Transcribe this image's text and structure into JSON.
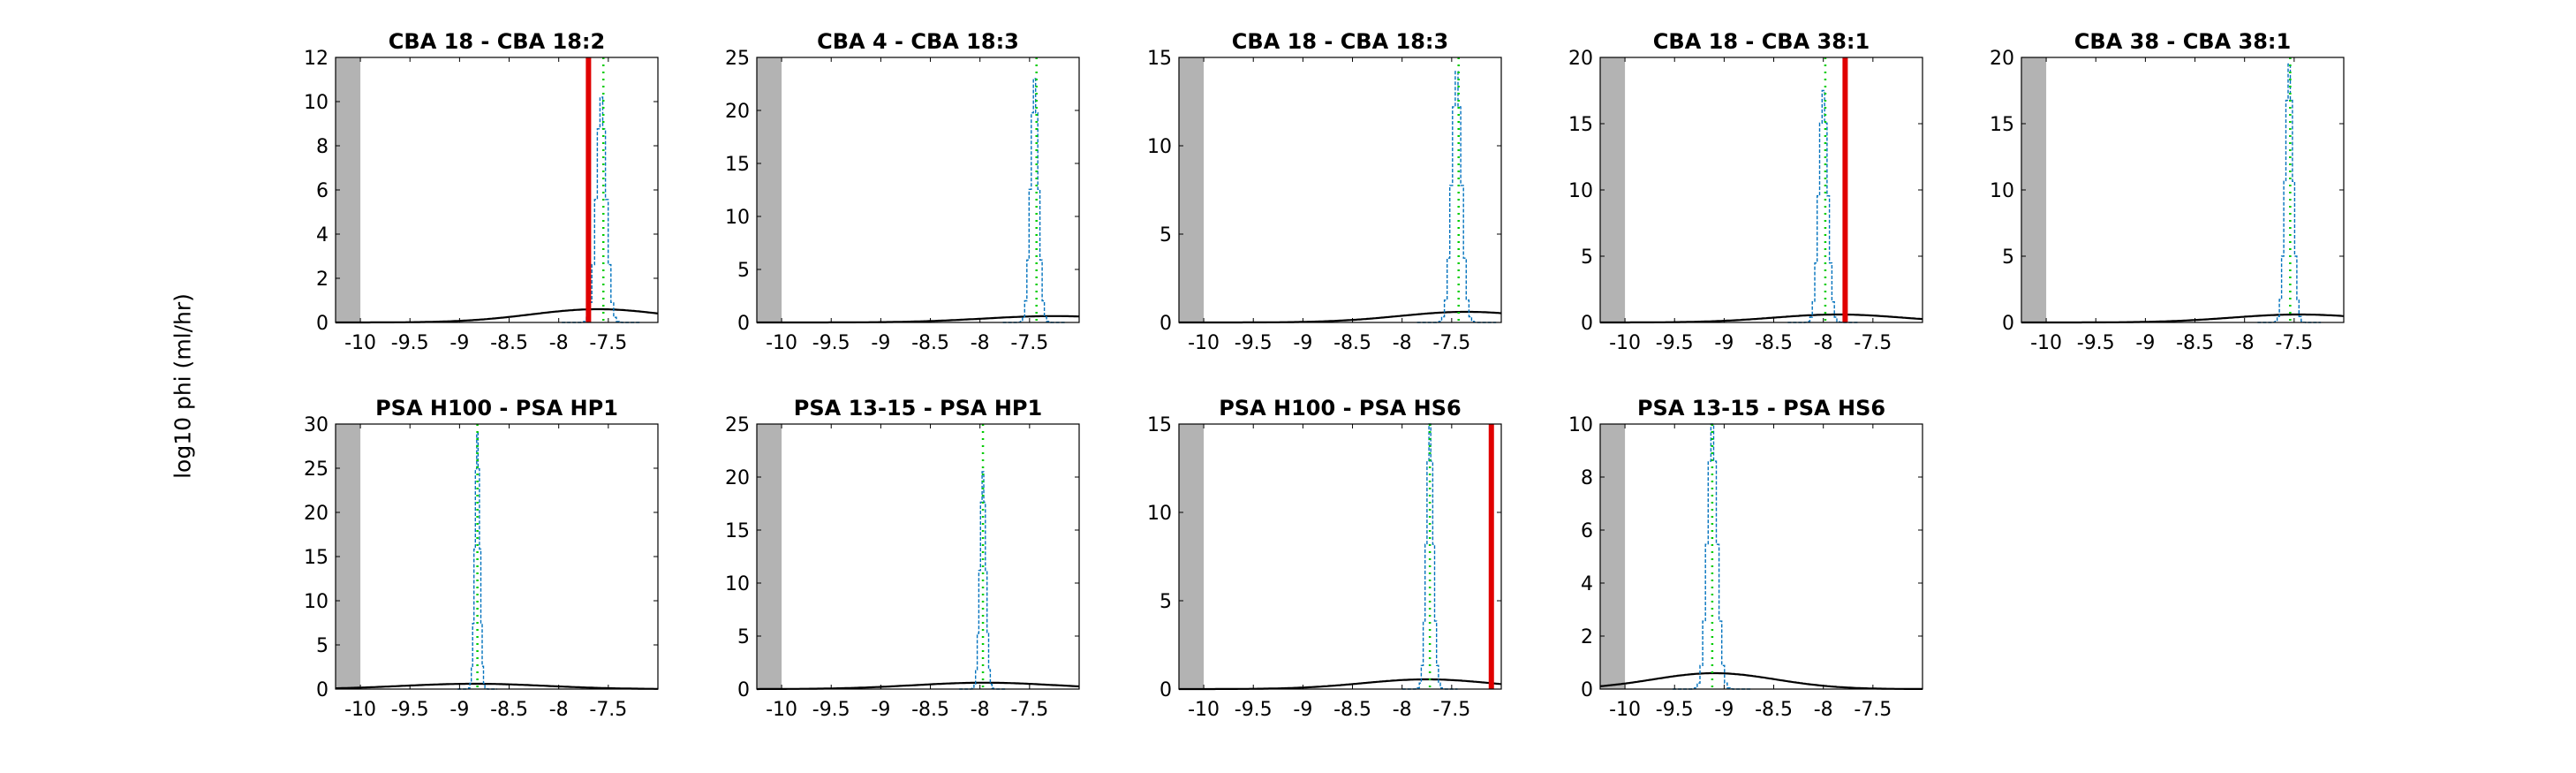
{
  "figure": {
    "ylabel": "log10 phi (ml/hr)"
  },
  "colors": {
    "prior": "#000000",
    "hist_outline": "#0072bd",
    "true_value_line": "#00cc00",
    "measured_line": "#e00000",
    "excluded_region": "#b3b3b3"
  },
  "chart_data": [
    {
      "type": "line",
      "title": "CBA 18 - CBA 18:2",
      "xlim": [
        -10.25,
        -7.0
      ],
      "ylim": [
        0,
        12
      ],
      "yticks": [
        0,
        2,
        4,
        6,
        8,
        10,
        12
      ],
      "xticks": [
        -10,
        -9.5,
        -9,
        -8.5,
        -8,
        -7.5
      ],
      "grey_region": [
        -10.25,
        -10.0
      ],
      "prior_gaussian": {
        "mean": -7.6,
        "sd": 0.68,
        "peak": 0.6
      },
      "hist": {
        "center": -7.57,
        "spread": 0.05,
        "peak": 10.2
      },
      "dotted_line_x": -7.55,
      "red_line_x": -7.7
    },
    {
      "type": "line",
      "title": "CBA 4 - CBA 18:3",
      "xlim": [
        -10.25,
        -7.0
      ],
      "ylim": [
        0,
        25
      ],
      "yticks": [
        0,
        5,
        10,
        15,
        20,
        25
      ],
      "xticks": [
        -10,
        -9.5,
        -9,
        -8.5,
        -8,
        -7.5
      ],
      "grey_region": [
        -10.25,
        -10.0
      ],
      "prior_gaussian": {
        "mean": -7.25,
        "sd": 0.72,
        "peak": 0.6
      },
      "hist": {
        "center": -7.45,
        "spread": 0.04,
        "peak": 23.0
      },
      "dotted_line_x": -7.43,
      "red_line_x": null
    },
    {
      "type": "line",
      "title": "CBA 18 - CBA 18:3",
      "xlim": [
        -10.25,
        -7.0
      ],
      "ylim": [
        0,
        15
      ],
      "yticks": [
        0,
        5,
        10,
        15
      ],
      "xticks": [
        -10,
        -9.5,
        -9,
        -8.5,
        -8,
        -7.5
      ],
      "grey_region": [
        -10.25,
        -10.0
      ],
      "prior_gaussian": {
        "mean": -7.35,
        "sd": 0.68,
        "peak": 0.6
      },
      "hist": {
        "center": -7.45,
        "spread": 0.05,
        "peak": 14.2
      },
      "dotted_line_x": -7.43,
      "red_line_x": null
    },
    {
      "type": "line",
      "title": "CBA 18 - CBA 38:1",
      "xlim": [
        -10.25,
        -7.0
      ],
      "ylim": [
        0,
        20
      ],
      "yticks": [
        0,
        5,
        10,
        15,
        20
      ],
      "xticks": [
        -10,
        -9.5,
        -9,
        -8.5,
        -8,
        -7.5
      ],
      "grey_region": [
        -10.25,
        -10.0
      ],
      "prior_gaussian": {
        "mean": -7.85,
        "sd": 0.65,
        "peak": 0.6
      },
      "hist": {
        "center": -8.0,
        "spread": 0.045,
        "peak": 17.5
      },
      "dotted_line_x": -7.98,
      "red_line_x": -7.78
    },
    {
      "type": "line",
      "title": "CBA 38 - CBA 38:1",
      "xlim": [
        -10.25,
        -7.0
      ],
      "ylim": [
        0,
        20
      ],
      "yticks": [
        0,
        5,
        10,
        15,
        20
      ],
      "xticks": [
        -10,
        -9.5,
        -9,
        -8.5,
        -8,
        -7.5
      ],
      "grey_region": [
        -10.25,
        -10.0
      ],
      "prior_gaussian": {
        "mean": -7.45,
        "sd": 0.68,
        "peak": 0.6
      },
      "hist": {
        "center": -7.55,
        "spread": 0.04,
        "peak": 19.5
      },
      "dotted_line_x": -7.54,
      "red_line_x": null
    },
    {
      "type": "line",
      "title": "PSA H100 - PSA HP1",
      "xlim": [
        -10.25,
        -7.0
      ],
      "ylim": [
        0,
        30
      ],
      "yticks": [
        0,
        5,
        10,
        15,
        20,
        25,
        30
      ],
      "xticks": [
        -10,
        -9.5,
        -9,
        -8.5,
        -8,
        -7.5
      ],
      "grey_region": [
        -10.25,
        -10.0
      ],
      "prior_gaussian": {
        "mean": -8.85,
        "sd": 0.72,
        "peak": 0.6
      },
      "hist": {
        "center": -8.82,
        "spread": 0.025,
        "peak": 29.0
      },
      "dotted_line_x": -8.82,
      "red_line_x": null
    },
    {
      "type": "line",
      "title": "PSA 13-15 - PSA HP1",
      "xlim": [
        -10.25,
        -7.0
      ],
      "ylim": [
        0,
        25
      ],
      "yticks": [
        0,
        5,
        10,
        15,
        20,
        25
      ],
      "xticks": [
        -10,
        -9.5,
        -9,
        -8.5,
        -8,
        -7.5
      ],
      "grey_region": [
        -10.25,
        -10.0
      ],
      "prior_gaussian": {
        "mean": -7.95,
        "sd": 0.72,
        "peak": 0.6
      },
      "hist": {
        "center": -7.97,
        "spread": 0.03,
        "peak": 20.5
      },
      "dotted_line_x": -7.97,
      "red_line_x": null
    },
    {
      "type": "line",
      "title": "PSA H100 - PSA HS6",
      "xlim": [
        -10.25,
        -7.0
      ],
      "ylim": [
        0,
        15
      ],
      "yticks": [
        0,
        5,
        10,
        15
      ],
      "xticks": [
        -10,
        -9.5,
        -9,
        -8.5,
        -8,
        -7.5
      ],
      "grey_region": [
        -10.25,
        -10.0
      ],
      "prior_gaussian": {
        "mean": -7.75,
        "sd": 0.65,
        "peak": 0.55
      },
      "hist": {
        "center": -7.72,
        "spread": 0.035,
        "peak": 15.0
      },
      "dotted_line_x": -7.72,
      "red_line_x": -7.1
    },
    {
      "type": "line",
      "title": "PSA 13-15 - PSA HS6",
      "xlim": [
        -10.25,
        -7.0
      ],
      "ylim": [
        0,
        10
      ],
      "yticks": [
        0,
        2,
        4,
        6,
        8,
        10
      ],
      "xticks": [
        -10,
        -9.5,
        -9,
        -8.5,
        -8,
        -7.5
      ],
      "grey_region": [
        -10.25,
        -10.0
      ],
      "prior_gaussian": {
        "mean": -9.1,
        "sd": 0.62,
        "peak": 0.6
      },
      "hist": {
        "center": -9.12,
        "spread": 0.05,
        "peak": 10.0
      },
      "dotted_line_x": -9.12,
      "red_line_x": null
    }
  ]
}
